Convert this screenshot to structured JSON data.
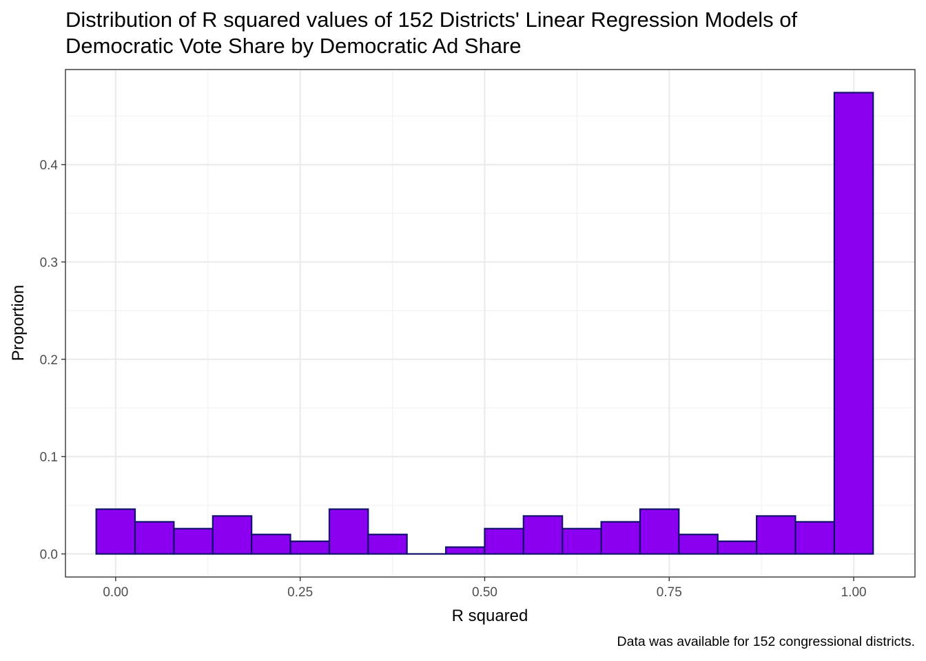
{
  "chart_data": {
    "type": "bar",
    "title_lines": [
      "Distribution of R squared values of 152 Districts' Linear Regression Models of",
      "Democratic Vote Share by Democratic Ad Share"
    ],
    "xlabel": "R squared",
    "ylabel": "Proportion",
    "caption": "Data was available for 152 congressional districts.",
    "bin_width": 0.0526,
    "bin_centers": [
      0,
      0.0526,
      0.1053,
      0.1579,
      0.2105,
      0.2632,
      0.3158,
      0.3684,
      0.4211,
      0.4737,
      0.5263,
      0.5789,
      0.6316,
      0.6842,
      0.7368,
      0.7895,
      0.8421,
      0.8947,
      0.9474,
      1.0
    ],
    "values": [
      0.046,
      0.033,
      0.026,
      0.039,
      0.02,
      0.013,
      0.046,
      0.02,
      0.0,
      0.007,
      0.026,
      0.039,
      0.026,
      0.033,
      0.046,
      0.02,
      0.013,
      0.039,
      0.033,
      0.474
    ],
    "xlim": [
      -0.068,
      1.083
    ],
    "ylim": [
      -0.0237,
      0.4977
    ],
    "x_ticks": [
      0,
      0.25,
      0.5,
      0.75,
      1.0
    ],
    "x_tick_labels": [
      "0.00",
      "0.25",
      "0.50",
      "0.75",
      "1.00"
    ],
    "y_ticks": [
      0,
      0.1,
      0.2,
      0.3,
      0.4
    ],
    "y_tick_labels": [
      "0.0",
      "0.1",
      "0.2",
      "0.3",
      "0.4"
    ],
    "grid": true,
    "legend": "none",
    "colors": {
      "bar_fill": "#8B00F0",
      "bar_stroke": "#12126E",
      "grid_major": "#EBEBEB",
      "grid_minor": "#F2F2F2",
      "panel_border": "#333333",
      "tick_label": "#4D4D4D"
    }
  }
}
